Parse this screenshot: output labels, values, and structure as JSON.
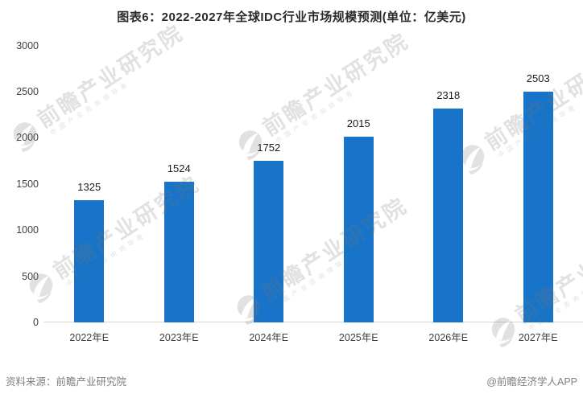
{
  "title": "图表6：2022-2027年全球IDC行业市场规模预测(单位：亿美元)",
  "chart_data": {
    "type": "bar",
    "categories": [
      "2022年E",
      "2023年E",
      "2024年E",
      "2025年E",
      "2026年E",
      "2027年E"
    ],
    "values": [
      1325,
      1524,
      1752,
      2015,
      2318,
      2503
    ],
    "title": "图表6：2022-2027年全球IDC行业市场规模预测(单位：亿美元)",
    "xlabel": "",
    "ylabel": "",
    "ylim": [
      0,
      3000
    ],
    "yticks": [
      0,
      500,
      1000,
      1500,
      2000,
      2500,
      3000
    ],
    "grid": false,
    "legend": "none",
    "data_labels": true,
    "bar_color": "#1874C8"
  },
  "footer": {
    "source": "资料来源：前瞻产业研究院",
    "attribution": "@前瞻经济学人APP"
  },
  "watermark": {
    "icon": "qianzhan-globe-logo",
    "text": "前瞻产业研究院",
    "subtext": "中国产业咨询领导者"
  },
  "colors": {
    "bar": "#1874C8",
    "axis_line": "#d6d6d6",
    "tick_text": "#404040",
    "muted_text": "#7f7f7f"
  }
}
